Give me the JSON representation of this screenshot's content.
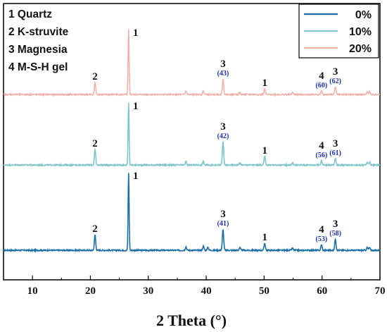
{
  "chart_data": {
    "type": "line",
    "xlabel": "2 Theta (°)",
    "xlim": [
      5,
      70
    ],
    "xticks": [
      "10",
      "20",
      "30",
      "40",
      "50",
      "60",
      "70"
    ],
    "phase_labels": [
      "1 Quartz",
      "2 K-struvite",
      "3 Magnesia",
      "4 M-S-H gel"
    ],
    "colors": {
      "0%": "#1a6ea6",
      "10%": "#7ec6cc",
      "20%": "#f2b2ab"
    },
    "series": [
      {
        "name": "0%",
        "color": "#1a6ea6",
        "baseline": 0,
        "peaks": [
          {
            "x": 20.8,
            "h": 22,
            "label": "2",
            "sub": ""
          },
          {
            "x": 26.6,
            "h": 110,
            "label": "1",
            "sub": ""
          },
          {
            "x": 36.5,
            "h": 5,
            "label": "",
            "sub": ""
          },
          {
            "x": 39.5,
            "h": 6,
            "label": "",
            "sub": ""
          },
          {
            "x": 40.3,
            "h": 4,
            "label": "",
            "sub": ""
          },
          {
            "x": 42.9,
            "h": 30,
            "label": "3",
            "sub": "(41)"
          },
          {
            "x": 45.8,
            "h": 4,
            "label": "",
            "sub": ""
          },
          {
            "x": 50.1,
            "h": 10,
            "label": "1",
            "sub": ""
          },
          {
            "x": 54.9,
            "h": 3,
            "label": "",
            "sub": ""
          },
          {
            "x": 59.9,
            "h": 8,
            "label": "4",
            "sub": "(53)"
          },
          {
            "x": 62.3,
            "h": 16,
            "label": "3",
            "sub": "(58)"
          },
          {
            "x": 67.8,
            "h": 4,
            "label": "",
            "sub": ""
          },
          {
            "x": 68.2,
            "h": 4,
            "label": "",
            "sub": ""
          }
        ]
      },
      {
        "name": "10%",
        "color": "#7ec6cc",
        "baseline": 1,
        "peaks": [
          {
            "x": 20.8,
            "h": 22,
            "label": "2",
            "sub": ""
          },
          {
            "x": 26.6,
            "h": 88,
            "label": "1",
            "sub": ""
          },
          {
            "x": 36.5,
            "h": 5,
            "label": "",
            "sub": ""
          },
          {
            "x": 39.5,
            "h": 5,
            "label": "",
            "sub": ""
          },
          {
            "x": 42.9,
            "h": 33,
            "label": "3",
            "sub": "(42)"
          },
          {
            "x": 45.8,
            "h": 3,
            "label": "",
            "sub": ""
          },
          {
            "x": 50.1,
            "h": 12,
            "label": "1",
            "sub": ""
          },
          {
            "x": 54.9,
            "h": 3,
            "label": "",
            "sub": ""
          },
          {
            "x": 59.9,
            "h": 6,
            "label": "4",
            "sub": "(56)"
          },
          {
            "x": 62.3,
            "h": 9,
            "label": "3",
            "sub": "(61)"
          },
          {
            "x": 67.8,
            "h": 4,
            "label": "",
            "sub": ""
          },
          {
            "x": 68.2,
            "h": 4,
            "label": "",
            "sub": ""
          }
        ]
      },
      {
        "name": "20%",
        "color": "#f2b2ab",
        "baseline": 2,
        "peaks": [
          {
            "x": 20.8,
            "h": 17,
            "label": "2",
            "sub": ""
          },
          {
            "x": 26.6,
            "h": 92,
            "label": "1",
            "sub": ""
          },
          {
            "x": 36.5,
            "h": 5,
            "label": "",
            "sub": ""
          },
          {
            "x": 39.5,
            "h": 5,
            "label": "",
            "sub": ""
          },
          {
            "x": 42.9,
            "h": 22,
            "label": "3",
            "sub": "(43)"
          },
          {
            "x": 45.8,
            "h": 3,
            "label": "",
            "sub": ""
          },
          {
            "x": 50.1,
            "h": 8,
            "label": "1",
            "sub": ""
          },
          {
            "x": 54.9,
            "h": 3,
            "label": "",
            "sub": ""
          },
          {
            "x": 59.9,
            "h": 5,
            "label": "4",
            "sub": "(60)"
          },
          {
            "x": 62.3,
            "h": 11,
            "label": "3",
            "sub": "(62)"
          },
          {
            "x": 67.8,
            "h": 4,
            "label": "",
            "sub": ""
          },
          {
            "x": 68.2,
            "h": 4,
            "label": "",
            "sub": ""
          }
        ]
      }
    ],
    "legend": {
      "placement": "top-right",
      "entries": [
        "0%",
        "10%",
        "20%"
      ]
    }
  }
}
